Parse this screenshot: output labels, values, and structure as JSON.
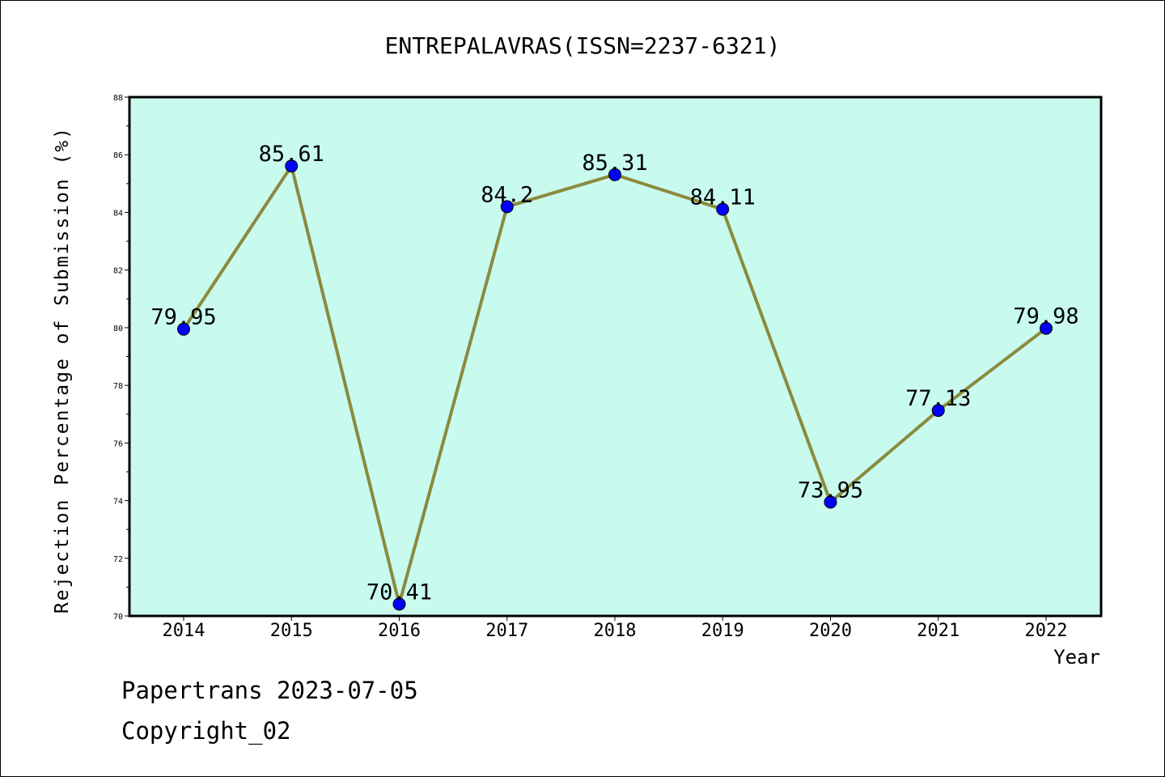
{
  "chart_data": {
    "type": "line",
    "title": "ENTREPALAVRAS(ISSN=2237-6321)",
    "xlabel": "Year",
    "ylabel": "Rejection Percentage of Submission (%)",
    "categories": [
      "2014",
      "2015",
      "2016",
      "2017",
      "2018",
      "2019",
      "2020",
      "2021",
      "2022"
    ],
    "values": [
      79.95,
      85.61,
      70.41,
      84.2,
      85.31,
      84.11,
      73.95,
      77.13,
      79.98
    ],
    "data_labels": [
      "79.95",
      "85.61",
      "70.41",
      "84.2",
      "85.31",
      "84.11",
      "73.95",
      "77.13",
      "79.98"
    ],
    "ylim": [
      70,
      88
    ],
    "yticks": [
      70,
      72,
      74,
      76,
      78,
      80,
      82,
      84,
      86,
      88
    ],
    "grid": false,
    "colors": {
      "plot_background": "#c8fbee",
      "line": "#8b8a3e",
      "marker": "#0000ff"
    }
  },
  "footer": {
    "line1": "Papertrans 2023-07-05",
    "line2": "Copyright_02"
  }
}
